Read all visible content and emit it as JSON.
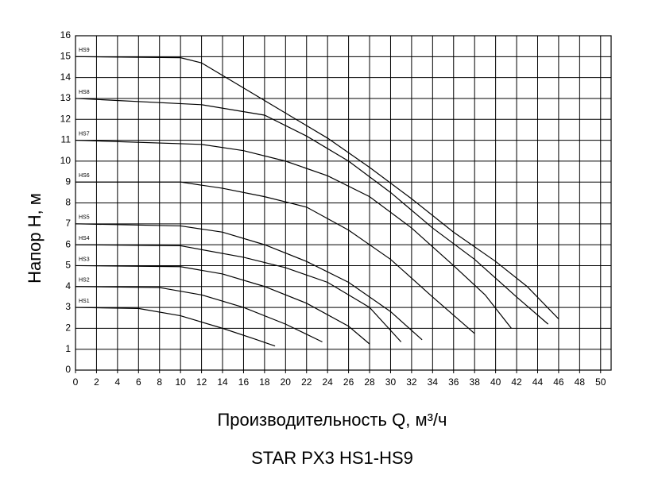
{
  "chart_data": {
    "type": "line",
    "title": "STAR PX3  HS1-HS9",
    "xlabel": "Производительность Q, м³/ч",
    "ylabel": "Напор H, м",
    "xlim": [
      0,
      51
    ],
    "ylim": [
      0,
      16
    ],
    "xticks": [
      0,
      2,
      4,
      6,
      8,
      10,
      12,
      14,
      16,
      18,
      20,
      22,
      24,
      26,
      28,
      30,
      32,
      34,
      36,
      38,
      40,
      42,
      44,
      46,
      48,
      50
    ],
    "yticks": [
      0,
      1,
      2,
      3,
      4,
      5,
      6,
      7,
      8,
      9,
      10,
      11,
      12,
      13,
      14,
      15,
      16
    ],
    "grid": true,
    "series": [
      {
        "name": "HS1",
        "color": "#000000",
        "x": [
          0,
          6,
          10,
          14,
          17,
          19
        ],
        "values": [
          3,
          2.95,
          2.6,
          2.0,
          1.5,
          1.15
        ]
      },
      {
        "name": "HS2",
        "color": "#000000",
        "x": [
          0,
          8,
          12,
          16,
          20,
          23.5
        ],
        "values": [
          4,
          3.95,
          3.6,
          3.0,
          2.2,
          1.35
        ]
      },
      {
        "name": "HS3",
        "color": "#000000",
        "x": [
          0,
          10,
          14,
          18,
          22,
          26,
          28
        ],
        "values": [
          5,
          4.95,
          4.6,
          4.0,
          3.2,
          2.1,
          1.25
        ]
      },
      {
        "name": "HS4",
        "color": "#000000",
        "x": [
          0,
          10,
          16,
          20,
          24,
          28,
          31
        ],
        "values": [
          6,
          5.95,
          5.4,
          4.9,
          4.2,
          3.0,
          1.35
        ]
      },
      {
        "name": "HS5",
        "color": "#000000",
        "x": [
          0,
          10,
          14,
          18,
          22,
          26,
          30,
          33
        ],
        "values": [
          7,
          6.9,
          6.6,
          6.0,
          5.2,
          4.2,
          2.8,
          1.45
        ]
      },
      {
        "name": "HS6",
        "color": "#000000",
        "x": [
          0,
          10,
          14,
          18,
          22,
          26,
          30,
          34,
          38
        ],
        "values": [
          9,
          9.0,
          8.7,
          8.3,
          7.8,
          6.7,
          5.3,
          3.5,
          1.75
        ]
      },
      {
        "name": "HS7",
        "color": "#000000",
        "x": [
          0,
          12,
          16,
          20,
          24,
          28,
          32,
          36,
          39,
          41.5
        ],
        "values": [
          11,
          10.8,
          10.5,
          10.0,
          9.3,
          8.3,
          6.8,
          5.0,
          3.6,
          2.0
        ]
      },
      {
        "name": "HS8",
        "color": "#000000",
        "x": [
          0,
          12,
          18,
          22,
          26,
          30,
          34,
          38,
          42,
          45
        ],
        "values": [
          13,
          12.7,
          12.2,
          11.2,
          10.0,
          8.5,
          6.8,
          5.3,
          3.5,
          2.2
        ]
      },
      {
        "name": "HS9",
        "color": "#000000",
        "x": [
          0,
          10,
          12,
          16,
          20,
          24,
          28,
          32,
          36,
          40,
          43,
          46
        ],
        "values": [
          15,
          14.95,
          14.7,
          13.5,
          12.3,
          11.1,
          9.7,
          8.2,
          6.6,
          5.2,
          4.0,
          2.45
        ]
      }
    ]
  }
}
